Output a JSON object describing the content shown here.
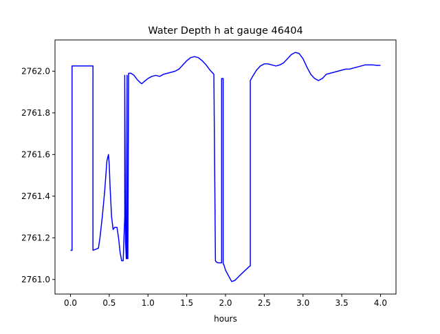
{
  "chart_data": {
    "type": "line",
    "title": "Water Depth h at gauge 46404",
    "xlabel": "hours",
    "ylabel": "",
    "xlim": [
      -0.2,
      4.2
    ],
    "ylim": [
      2760.93,
      2762.15
    ],
    "xticks": [
      0.0,
      0.5,
      1.0,
      1.5,
      2.0,
      2.5,
      3.0,
      3.5,
      4.0
    ],
    "xtick_labels": [
      "0.0",
      "0.5",
      "1.0",
      "1.5",
      "2.0",
      "2.5",
      "3.0",
      "3.5",
      "4.0"
    ],
    "yticks": [
      2761.0,
      2761.2,
      2761.4,
      2761.6,
      2761.8,
      2762.0
    ],
    "ytick_labels": [
      "2761.0",
      "2761.2",
      "2761.4",
      "2761.6",
      "2761.8",
      "2762.0"
    ],
    "grid": false,
    "series": [
      {
        "color": "#0000ff",
        "x": [
          0.0,
          0.02,
          0.02,
          0.29,
          0.29,
          0.36,
          0.38,
          0.41,
          0.44,
          0.47,
          0.49,
          0.5,
          0.51,
          0.53,
          0.55,
          0.57,
          0.6,
          0.62,
          0.64,
          0.66,
          0.68,
          0.69,
          0.7,
          0.7,
          0.71,
          0.72,
          0.72,
          0.73,
          0.73,
          0.74,
          0.75,
          0.78,
          0.82,
          0.86,
          0.9,
          0.92,
          0.95,
          1.0,
          1.05,
          1.1,
          1.15,
          1.2,
          1.25,
          1.3,
          1.35,
          1.4,
          1.45,
          1.5,
          1.55,
          1.6,
          1.65,
          1.7,
          1.75,
          1.8,
          1.85,
          1.87,
          1.88,
          1.9,
          1.95,
          1.95,
          1.96,
          1.97,
          1.97,
          1.98,
          2.0,
          2.05,
          2.08,
          2.12,
          2.2,
          2.3,
          2.32,
          2.32,
          2.35,
          2.4,
          2.45,
          2.5,
          2.55,
          2.6,
          2.65,
          2.7,
          2.75,
          2.8,
          2.85,
          2.9,
          2.95,
          3.0,
          3.05,
          3.1,
          3.15,
          3.2,
          3.25,
          3.3,
          3.35,
          3.4,
          3.45,
          3.5,
          3.55,
          3.6,
          3.65,
          3.7,
          3.75,
          3.8,
          3.85,
          3.9,
          3.95,
          4.0
        ],
        "y": [
          2761.14,
          2761.14,
          2762.025,
          2762.025,
          2761.14,
          2761.15,
          2761.2,
          2761.3,
          2761.42,
          2761.57,
          2761.6,
          2761.55,
          2761.45,
          2761.3,
          2761.24,
          2761.25,
          2761.25,
          2761.2,
          2761.13,
          2761.09,
          2761.09,
          2761.2,
          2761.3,
          2761.98,
          2761.18,
          2761.1,
          2761.1,
          2761.98,
          2761.1,
          2761.1,
          2761.99,
          2761.99,
          2761.98,
          2761.96,
          2761.945,
          2761.94,
          2761.95,
          2761.965,
          2761.975,
          2761.98,
          2761.975,
          2761.985,
          2761.99,
          2761.995,
          2762.0,
          2762.01,
          2762.03,
          2762.05,
          2762.065,
          2762.07,
          2762.065,
          2762.05,
          2762.03,
          2762.005,
          2761.985,
          2761.09,
          2761.085,
          2761.08,
          2761.08,
          2761.965,
          2761.965,
          2761.965,
          2761.075,
          2761.07,
          2761.045,
          2761.01,
          2760.99,
          2760.995,
          2761.025,
          2761.06,
          2761.065,
          2761.955,
          2761.975,
          2762.005,
          2762.025,
          2762.035,
          2762.035,
          2762.03,
          2762.025,
          2762.03,
          2762.04,
          2762.06,
          2762.08,
          2762.09,
          2762.085,
          2762.06,
          2762.02,
          2761.985,
          2761.965,
          2761.955,
          2761.965,
          2761.985,
          2761.99,
          2761.995,
          2762.0,
          2762.005,
          2762.01,
          2762.01,
          2762.015,
          2762.02,
          2762.025,
          2762.03,
          2762.03,
          2762.03,
          2762.028,
          2762.028
        ]
      }
    ]
  }
}
